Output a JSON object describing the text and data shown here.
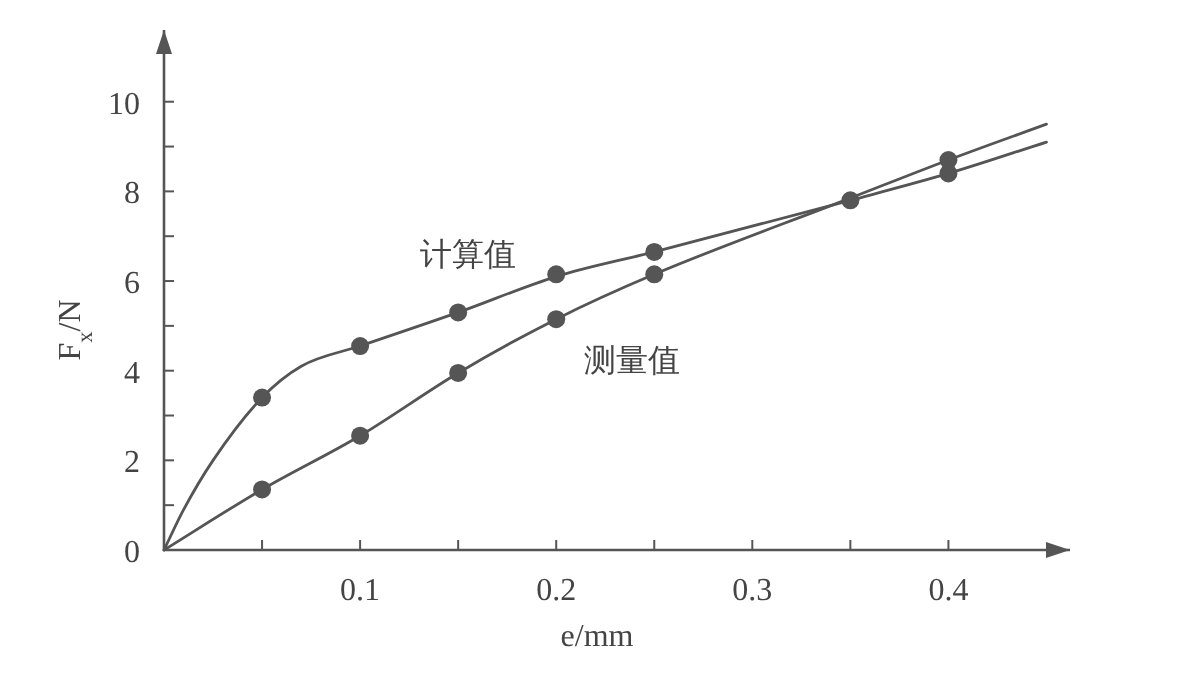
{
  "chart_data": {
    "type": "line",
    "xlabel": "e/mm",
    "ylabel": "F$_{x}$/N",
    "xlim": [
      0,
      0.462
    ],
    "ylim": [
      0,
      11.6
    ],
    "xticks": [
      {
        "value": 0.05,
        "label": null
      },
      0.1,
      {
        "value": 0.15,
        "label": null
      },
      0.2,
      {
        "value": 0.25,
        "label": null
      },
      0.3,
      {
        "value": 0.35,
        "label": null
      },
      0.4
    ],
    "yticks": [
      0,
      {
        "value": 1,
        "label": null
      },
      2,
      {
        "value": 3,
        "label": null
      },
      4,
      {
        "value": 5,
        "label": null
      },
      6,
      {
        "value": 7,
        "label": null
      },
      8,
      {
        "value": 9,
        "label": null
      },
      10
    ],
    "grid": false,
    "marker": "none",
    "line_style": "solid",
    "series": [
      {
        "name": "计算值",
        "color": "#555555",
        "x": [
          0,
          0.01,
          0.025,
          0.05,
          0.07,
          0.1,
          0.15,
          0.2,
          0.25,
          0.35,
          0.4,
          0.45
        ],
        "values": [
          0,
          0.9,
          2.0,
          3.4,
          4.1,
          4.55,
          5.3,
          6.1,
          6.65,
          7.8,
          8.4,
          9.1
        ]
      },
      {
        "name": "测量值",
        "color": "#555555",
        "x": [
          0,
          0.05,
          0.1,
          0.15,
          0.2,
          0.25,
          0.35,
          0.4,
          0.45
        ],
        "values": [
          0,
          1.35,
          2.55,
          3.95,
          5.15,
          6.15,
          7.85,
          8.7,
          9.5
        ]
      },
      {
        "type": "scatter",
        "marker": "circle",
        "color": "#555555",
        "x": [
          0.05,
          0.1,
          0.15,
          0.2,
          0.25,
          0.35,
          0.4
        ],
        "values": [
          3.4,
          4.55,
          5.3,
          6.15,
          6.65,
          null,
          8.4
        ]
      },
      {
        "type": "scatter",
        "marker": "circle",
        "color": "#555555",
        "x": [
          0.05,
          0.1,
          0.15,
          0.2,
          0.25,
          0.35,
          0.4
        ],
        "values": [
          1.35,
          2.55,
          3.95,
          5.15,
          6.15,
          7.8,
          8.7
        ]
      }
    ]
  }
}
